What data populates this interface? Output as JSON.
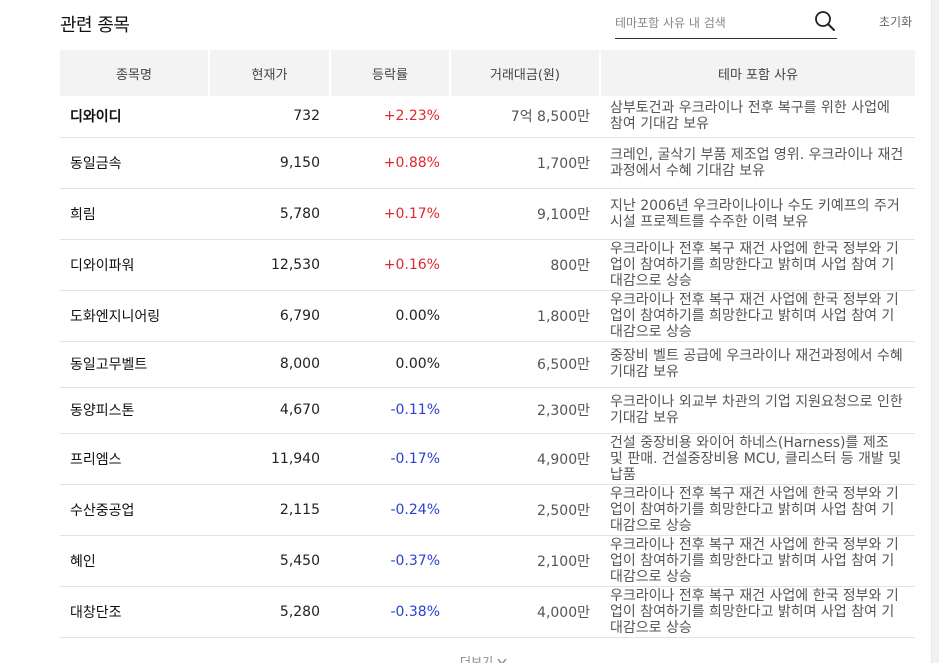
{
  "header": {
    "title": "관련 종목",
    "search_placeholder": "테마포함 사유 내 검색",
    "search_value": "",
    "reset_label": "초기화",
    "search_icon": "search-icon"
  },
  "table": {
    "columns": [
      "종목명",
      "현재가",
      "등락률",
      "거래대금(원)",
      "테마 포함 사유"
    ],
    "rows": [
      {
        "name": "디와이디",
        "price": "732",
        "rate": "+2.23%",
        "direction": "up",
        "volume": "7억 8,500만",
        "reason": "삼부토건과 우크라이나 전후 복구를 위한 사업에 참여 기대감 보유"
      },
      {
        "name": "동일금속",
        "price": "9,150",
        "rate": "+0.88%",
        "direction": "up",
        "volume": "1,700만",
        "reason": "크레인, 굴삭기 부품 제조업 영위. 우크라이나 재건과정에서 수혜 기대감 보유"
      },
      {
        "name": "희림",
        "price": "5,780",
        "rate": "+0.17%",
        "direction": "up",
        "volume": "9,100만",
        "reason": "지난 2006년 우크라이나이나 수도 키예프의 주거시설 프로젝트를 수주한 이력 보유"
      },
      {
        "name": "디와이파워",
        "price": "12,530",
        "rate": "+0.16%",
        "direction": "up",
        "volume": "800만",
        "reason": "우크라이나 전후 복구 재건 사업에 한국 정부와 기업이 참여하기를 희망한다고 밝히며 사업 참여 기대감으로 상승"
      },
      {
        "name": "도화엔지니어링",
        "price": "6,790",
        "rate": "0.00%",
        "direction": "flat",
        "volume": "1,800만",
        "reason": "우크라이나 전후 복구 재건 사업에 한국 정부와 기업이 참여하기를 희망한다고 밝히며 사업 참여 기대감으로 상승"
      },
      {
        "name": "동일고무벨트",
        "price": "8,000",
        "rate": "0.00%",
        "direction": "flat",
        "volume": "6,500만",
        "reason": "중장비 벨트 공급에 우크라이나 재건과정에서 수혜 기대감 보유"
      },
      {
        "name": "동양피스톤",
        "price": "4,670",
        "rate": "-0.11%",
        "direction": "down",
        "volume": "2,300만",
        "reason": "우크라이나 외교부 차관의 기업 지원요청으로 인한 기대감 보유"
      },
      {
        "name": "프리엠스",
        "price": "11,940",
        "rate": "-0.17%",
        "direction": "down",
        "volume": "4,900만",
        "reason": "건설 중장비용 와이어 하네스(Harness)를 제조 및 판매. 건설중장비용 MCU, 클리스터 등 개발 및 납품"
      },
      {
        "name": "수산중공업",
        "price": "2,115",
        "rate": "-0.24%",
        "direction": "down",
        "volume": "2,500만",
        "reason": "우크라이나 전후 복구 재건 사업에 한국 정부와 기업이 참여하기를 희망한다고 밝히며 사업 참여 기대감으로 상승"
      },
      {
        "name": "혜인",
        "price": "5,450",
        "rate": "-0.37%",
        "direction": "down",
        "volume": "2,100만",
        "reason": "우크라이나 전후 복구 재건 사업에 한국 정부와 기업이 참여하기를 희망한다고 밝히며 사업 참여 기대감으로 상승"
      },
      {
        "name": "대창단조",
        "price": "5,280",
        "rate": "-0.38%",
        "direction": "down",
        "volume": "4,000만",
        "reason": "우크라이나 전후 복구 재건 사업에 한국 정부와 기업이 참여하기를 희망한다고 밝히며 사업 참여 기대감으로 상승"
      }
    ]
  },
  "footer": {
    "more_label": "더보기",
    "more_icon": "chevron-down-icon"
  },
  "colors": {
    "up": "#e2262f",
    "down": "#2c41d2",
    "flat": "#222222",
    "header_bg": "#f3f3f3"
  }
}
